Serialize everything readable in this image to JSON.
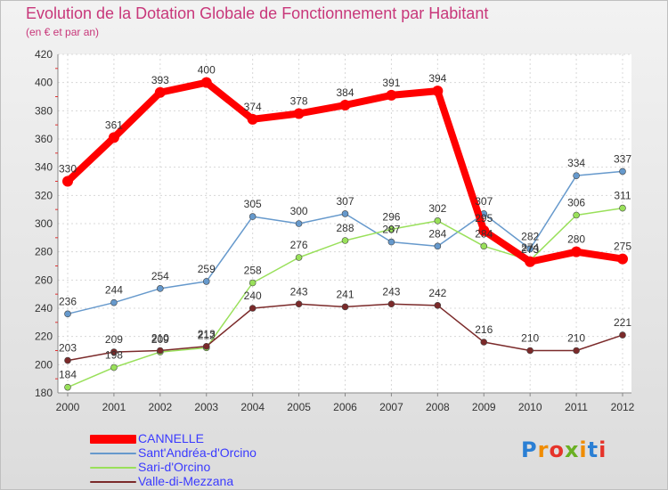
{
  "title": "Evolution de la Dotation Globale de Fonctionnement par Habitant",
  "subtitle": "(en € et par an)",
  "logo_text": "Proxiti",
  "chart_data": {
    "type": "line",
    "title": "Evolution de la Dotation Globale de Fonctionnement par Habitant",
    "subtitle": "(en € et par an)",
    "xlabel": "",
    "ylabel": "",
    "x": [
      "2000",
      "2001",
      "2002",
      "2003",
      "2004",
      "2005",
      "2006",
      "2007",
      "2008",
      "2009",
      "2010",
      "2011",
      "2012"
    ],
    "y_ticks": [
      "180",
      "200",
      "220",
      "240",
      "260",
      "280",
      "300",
      "320",
      "340",
      "360",
      "380",
      "400",
      "420"
    ],
    "ylim": [
      180,
      420
    ],
    "grid": true,
    "legend_position": "bottom-left",
    "series": [
      {
        "name": "CANNELLE",
        "values": [
          330,
          361,
          393,
          400,
          374,
          378,
          384,
          391,
          394,
          295,
          273,
          280,
          275
        ],
        "color": "#ff0000"
      },
      {
        "name": "Sant'Andréa-d'Orcino",
        "values": [
          236,
          244,
          254,
          259,
          305,
          300,
          307,
          287,
          284,
          307,
          282,
          334,
          337
        ],
        "color": "#6699cc"
      },
      {
        "name": "Sari-d'Orcino",
        "values": [
          184,
          198,
          209,
          212,
          258,
          276,
          288,
          296,
          302,
          284,
          274,
          306,
          311
        ],
        "color": "#99e05a"
      },
      {
        "name": "Valle-di-Mezzana",
        "values": [
          203,
          209,
          210,
          213,
          240,
          243,
          241,
          243,
          242,
          216,
          210,
          210,
          221
        ],
        "color": "#7b2a2a"
      }
    ]
  }
}
